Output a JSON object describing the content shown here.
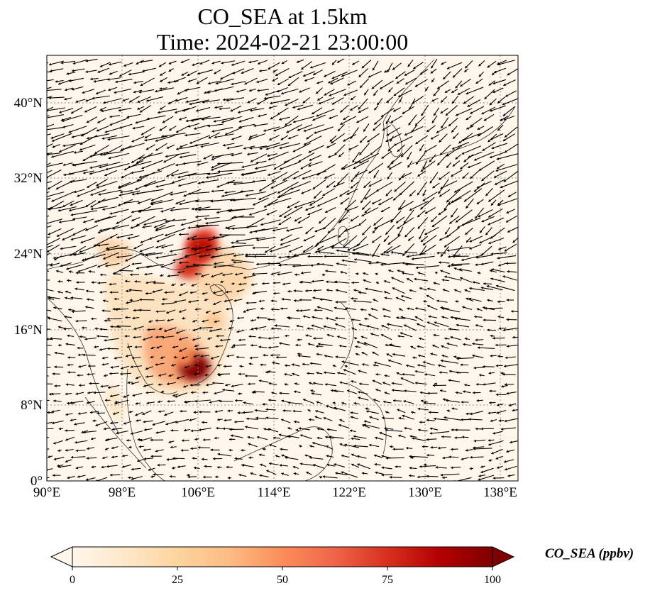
{
  "title_line1": "CO_SEA at 1.5km",
  "title_line2": "Time: 2024-02-21 23:00:00",
  "colorbar": {
    "label": "CO_SEA (ppbv)",
    "ticks": [
      "0",
      "25",
      "50",
      "75",
      "100"
    ],
    "colormap": "OrRd",
    "colors": [
      "#fff7ec",
      "#fee8c8",
      "#fdd49e",
      "#fdbb84",
      "#fc8d59",
      "#ef6548",
      "#d7301f",
      "#b30000",
      "#7f0000"
    ]
  },
  "chart_data": {
    "type": "heatmap",
    "variable": "CO_SEA",
    "units": "ppbv",
    "level": "1.5km",
    "time": "2024-02-21 23:00:00",
    "lon_range": [
      90,
      139.5
    ],
    "lat_range": [
      0,
      45
    ],
    "x_ticks": [
      "90°E",
      "98°E",
      "106°E",
      "114°E",
      "122°E",
      "130°E",
      "138°E"
    ],
    "y_ticks": [
      "0°",
      "8°N",
      "16°N",
      "24°N",
      "32°N",
      "40°N"
    ],
    "color_range": [
      0,
      100
    ],
    "grid": true,
    "overlay": "wind vectors",
    "hotspots": [
      {
        "lon": 105.5,
        "lat": 12,
        "value": 100
      },
      {
        "lon": 106.3,
        "lat": 24.6,
        "value": 85
      },
      {
        "lon": 104.8,
        "lat": 22.5,
        "value": 75
      },
      {
        "lon": 104.5,
        "lat": 13,
        "value": 50
      },
      {
        "lon": 107.5,
        "lat": 17,
        "value": 35
      },
      {
        "lon": 98,
        "lat": 24.5,
        "value": 20
      }
    ]
  }
}
